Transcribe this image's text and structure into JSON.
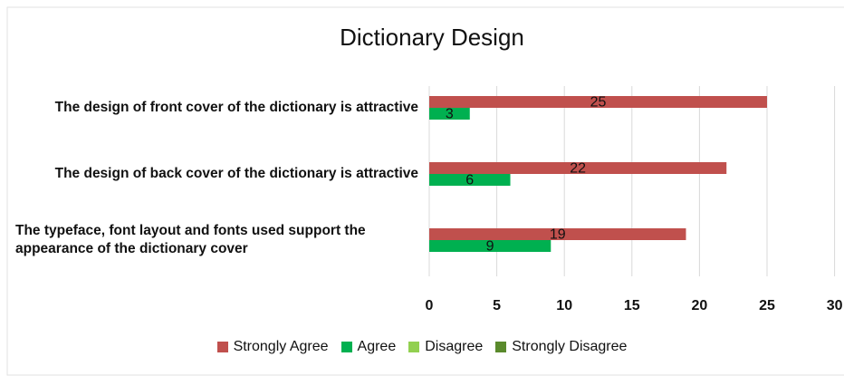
{
  "chart_data": {
    "type": "hbar",
    "title": "Dictionary Design",
    "categories": [
      "The design of front cover of the dictionary is attractive",
      "The design of back cover of the dictionary is attractive",
      "The typeface, font layout and fonts used support the appearance of the dictionary cover"
    ],
    "series": [
      {
        "name": "Strongly Agree",
        "color": "#c0504d",
        "values": [
          25,
          22,
          19
        ]
      },
      {
        "name": "Agree",
        "color": "#00b050",
        "values": [
          3,
          6,
          9
        ]
      },
      {
        "name": "Disagree",
        "color": "#92d050",
        "values": [
          0,
          0,
          0
        ]
      },
      {
        "name": "Strongly Disagree",
        "color": "#5a8a2c",
        "values": [
          0,
          0,
          0
        ]
      }
    ],
    "xlim": [
      0,
      30
    ],
    "xticks": [
      0,
      5,
      10,
      15,
      20,
      25,
      30
    ],
    "grid": true,
    "legend": "bottom"
  }
}
